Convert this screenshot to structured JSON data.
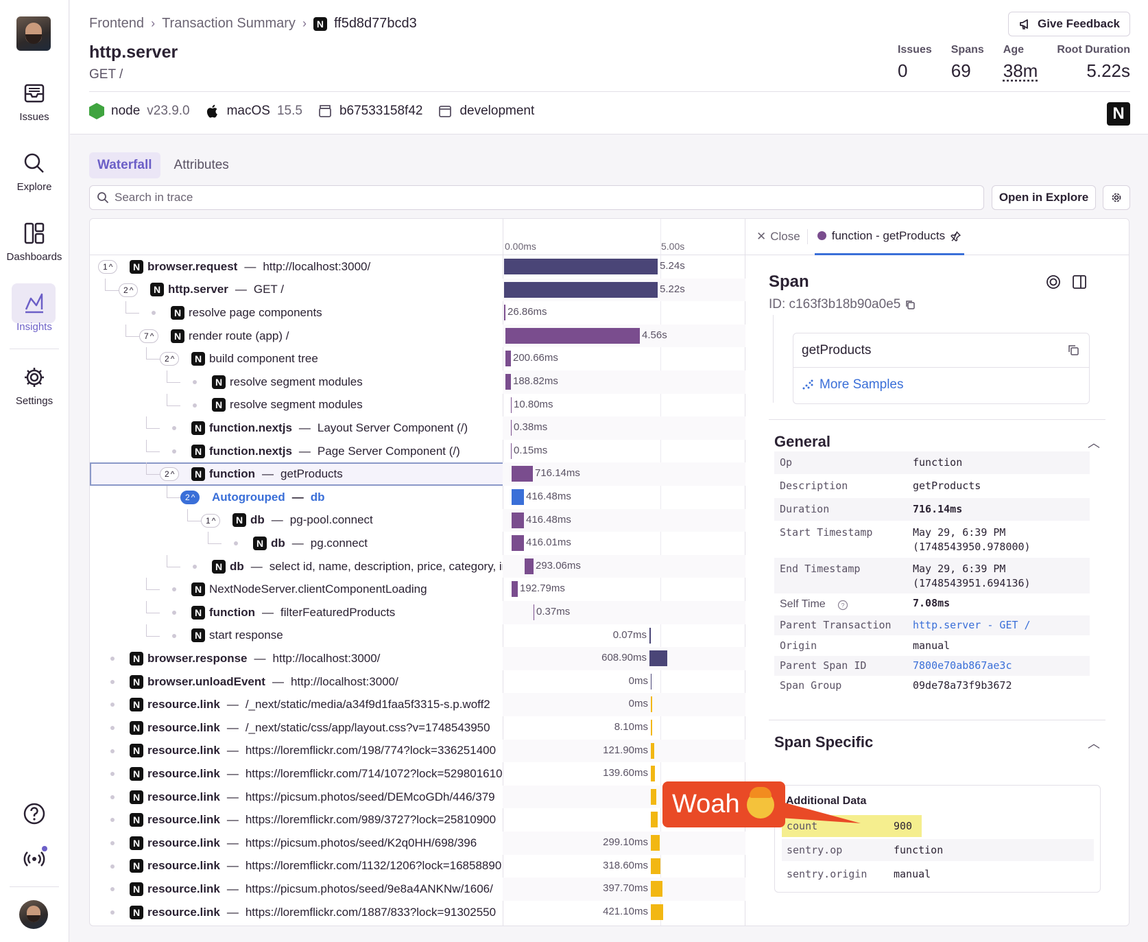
{
  "sidebar": {
    "items": [
      {
        "label": "Issues",
        "icon": "inbox-icon"
      },
      {
        "label": "Explore",
        "icon": "search-icon"
      },
      {
        "label": "Dashboards",
        "icon": "dashboard-icon"
      },
      {
        "label": "Insights",
        "icon": "insights-chart-icon",
        "active": true
      },
      {
        "label": "Settings",
        "icon": "gear-icon"
      }
    ],
    "bottom_icons": [
      "help-icon",
      "broadcast-icon"
    ]
  },
  "breadcrumb": {
    "items": [
      "Frontend",
      "Transaction Summary",
      "ff5d8d77bcd3"
    ],
    "logo_letter": "N"
  },
  "header": {
    "title": "http.server",
    "subtitle": "GET /",
    "feedback_label": "Give Feedback",
    "stats": [
      {
        "label": "Issues",
        "value": "0"
      },
      {
        "label": "Spans",
        "value": "69"
      },
      {
        "label": "Age",
        "value": "38m"
      },
      {
        "label": "Root Duration",
        "value": "5.22s"
      }
    ],
    "tags": {
      "runtime": "node",
      "runtime_version": "v23.9.0",
      "os": "macOS",
      "os_version": "15.5",
      "release": "b67533158f42",
      "environment": "development"
    }
  },
  "tabs": [
    "Waterfall",
    "Attributes"
  ],
  "search": {
    "placeholder": "Search in trace"
  },
  "toolbar": {
    "open_in_explore": "Open in Explore"
  },
  "timeline": {
    "ticks": [
      "0.00ms",
      "5.00s"
    ]
  },
  "spans": [
    {
      "depth": 0,
      "toggle": "1",
      "op": "browser.request",
      "desc": "http://localhost:3000/",
      "dur": "5.24s"
    },
    {
      "depth": 1,
      "toggle": "2",
      "op": "http.server",
      "desc": "GET /",
      "dur": "5.22s"
    },
    {
      "depth": 2,
      "op": "",
      "desc": "resolve page components",
      "dur": "26.86ms"
    },
    {
      "depth": 2,
      "toggle": "7",
      "op": "",
      "desc": "render route (app) /",
      "dur": "4.56s"
    },
    {
      "depth": 3,
      "toggle": "2",
      "op": "",
      "desc": "build component tree",
      "dur": "200.66ms"
    },
    {
      "depth": 4,
      "op": "",
      "desc": "resolve segment modules",
      "dur": "188.82ms"
    },
    {
      "depth": 4,
      "op": "",
      "desc": "resolve segment modules",
      "dur": "10.80ms"
    },
    {
      "depth": 3,
      "op": "function.nextjs",
      "desc": "Layout Server Component (/)",
      "dur": "0.38ms"
    },
    {
      "depth": 3,
      "op": "function.nextjs",
      "desc": "Page Server Component (/)",
      "dur": "0.15ms"
    },
    {
      "depth": 3,
      "toggle": "2",
      "op": "function",
      "desc": "getProducts",
      "dur": "716.14ms",
      "selected": true
    },
    {
      "depth": 4,
      "toggle": "2",
      "op": "Autogrouped",
      "desc": "db",
      "dur": "416.48ms",
      "autogroup": true
    },
    {
      "depth": 5,
      "toggle": "1",
      "op": "db",
      "desc": "pg-pool.connect",
      "dur": "416.48ms"
    },
    {
      "depth": 6,
      "op": "db",
      "desc": "pg.connect",
      "dur": "416.01ms"
    },
    {
      "depth": 4,
      "op": "db",
      "desc": "select id, name, description, price, category, im",
      "dur": "293.06ms"
    },
    {
      "depth": 3,
      "op": "",
      "desc": "NextNodeServer.clientComponentLoading",
      "dur": "192.79ms"
    },
    {
      "depth": 3,
      "op": "function",
      "desc": "filterFeaturedProducts",
      "dur": "0.37ms"
    },
    {
      "depth": 3,
      "op": "",
      "desc": "start response",
      "dur": "0.07ms"
    },
    {
      "depth": 0,
      "op": "browser.response",
      "desc": "http://localhost:3000/",
      "dur": "608.90ms"
    },
    {
      "depth": 0,
      "op": "browser.unloadEvent",
      "desc": "http://localhost:3000/",
      "dur": "0ms"
    },
    {
      "depth": 0,
      "op": "resource.link",
      "desc": "/_next/static/media/a34f9d1faa5f3315-s.p.woff2",
      "dur": "0ms"
    },
    {
      "depth": 0,
      "op": "resource.link",
      "desc": "/_next/static/css/app/layout.css?v=1748543950",
      "dur": "8.10ms"
    },
    {
      "depth": 0,
      "op": "resource.link",
      "desc": "https://loremflickr.com/198/774?lock=336251400",
      "dur": "121.90ms"
    },
    {
      "depth": 0,
      "op": "resource.link",
      "desc": "https://loremflickr.com/714/1072?lock=529801610",
      "dur": "139.60ms"
    },
    {
      "depth": 0,
      "op": "resource.link",
      "desc": "https://picsum.photos/seed/DEMcoGDh/446/379",
      "dur": ""
    },
    {
      "depth": 0,
      "op": "resource.link",
      "desc": "https://loremflickr.com/989/3727?lock=25810900",
      "dur": ""
    },
    {
      "depth": 0,
      "op": "resource.link",
      "desc": "https://picsum.photos/seed/K2q0HH/698/396",
      "dur": "299.10ms"
    },
    {
      "depth": 0,
      "op": "resource.link",
      "desc": "https://loremflickr.com/1132/1206?lock=16858890",
      "dur": "318.60ms"
    },
    {
      "depth": 0,
      "op": "resource.link",
      "desc": "https://picsum.photos/seed/9e8a4ANKNw/1606/",
      "dur": "397.70ms"
    },
    {
      "depth": 0,
      "op": "resource.link",
      "desc": "https://loremflickr.com/1887/833?lock=91302550",
      "dur": "421.10ms"
    }
  ],
  "colors": {
    "bar_dark": "#4a4577",
    "bar_purple": "#7a4d8e",
    "bar_blue": "#3a6fd8",
    "bar_yellow": "#f2b712",
    "accent": "#6c5fc7",
    "callout": "#e94a26"
  },
  "detail": {
    "close_label": "Close",
    "tab_label": "function - getProducts",
    "span_title": "Span",
    "span_id": "ID: c163f3b18b90a0e5",
    "sample_name": "getProducts",
    "more_samples": "More Samples",
    "general_title": "General",
    "general": [
      {
        "k": "Op",
        "v": "function"
      },
      {
        "k": "Description",
        "v": "getProducts"
      },
      {
        "k": "Duration",
        "v": "716.14ms"
      },
      {
        "k": "Start Timestamp",
        "v": "May 29, 6:39 PM\n(1748543950.978000)"
      },
      {
        "k": "End Timestamp",
        "v": "May 29, 6:39 PM\n(1748543951.694136)"
      },
      {
        "k": "Self Time",
        "v": "7.08ms"
      },
      {
        "k": "Parent Transaction",
        "v": "http.server - GET /"
      },
      {
        "k": "Origin",
        "v": "manual"
      },
      {
        "k": "Parent Span ID",
        "v": "7800e70ab867ae3c"
      },
      {
        "k": "Span Group",
        "v": "09de78a73f9b3672"
      }
    ],
    "specific_title": "Span Specific",
    "additional_title": "Additional Data",
    "additional": [
      {
        "k": "count",
        "v": "900"
      },
      {
        "k": "sentry.op",
        "v": "function"
      },
      {
        "k": "sentry.origin",
        "v": "manual"
      }
    ]
  },
  "callout": {
    "text": "Woah"
  }
}
